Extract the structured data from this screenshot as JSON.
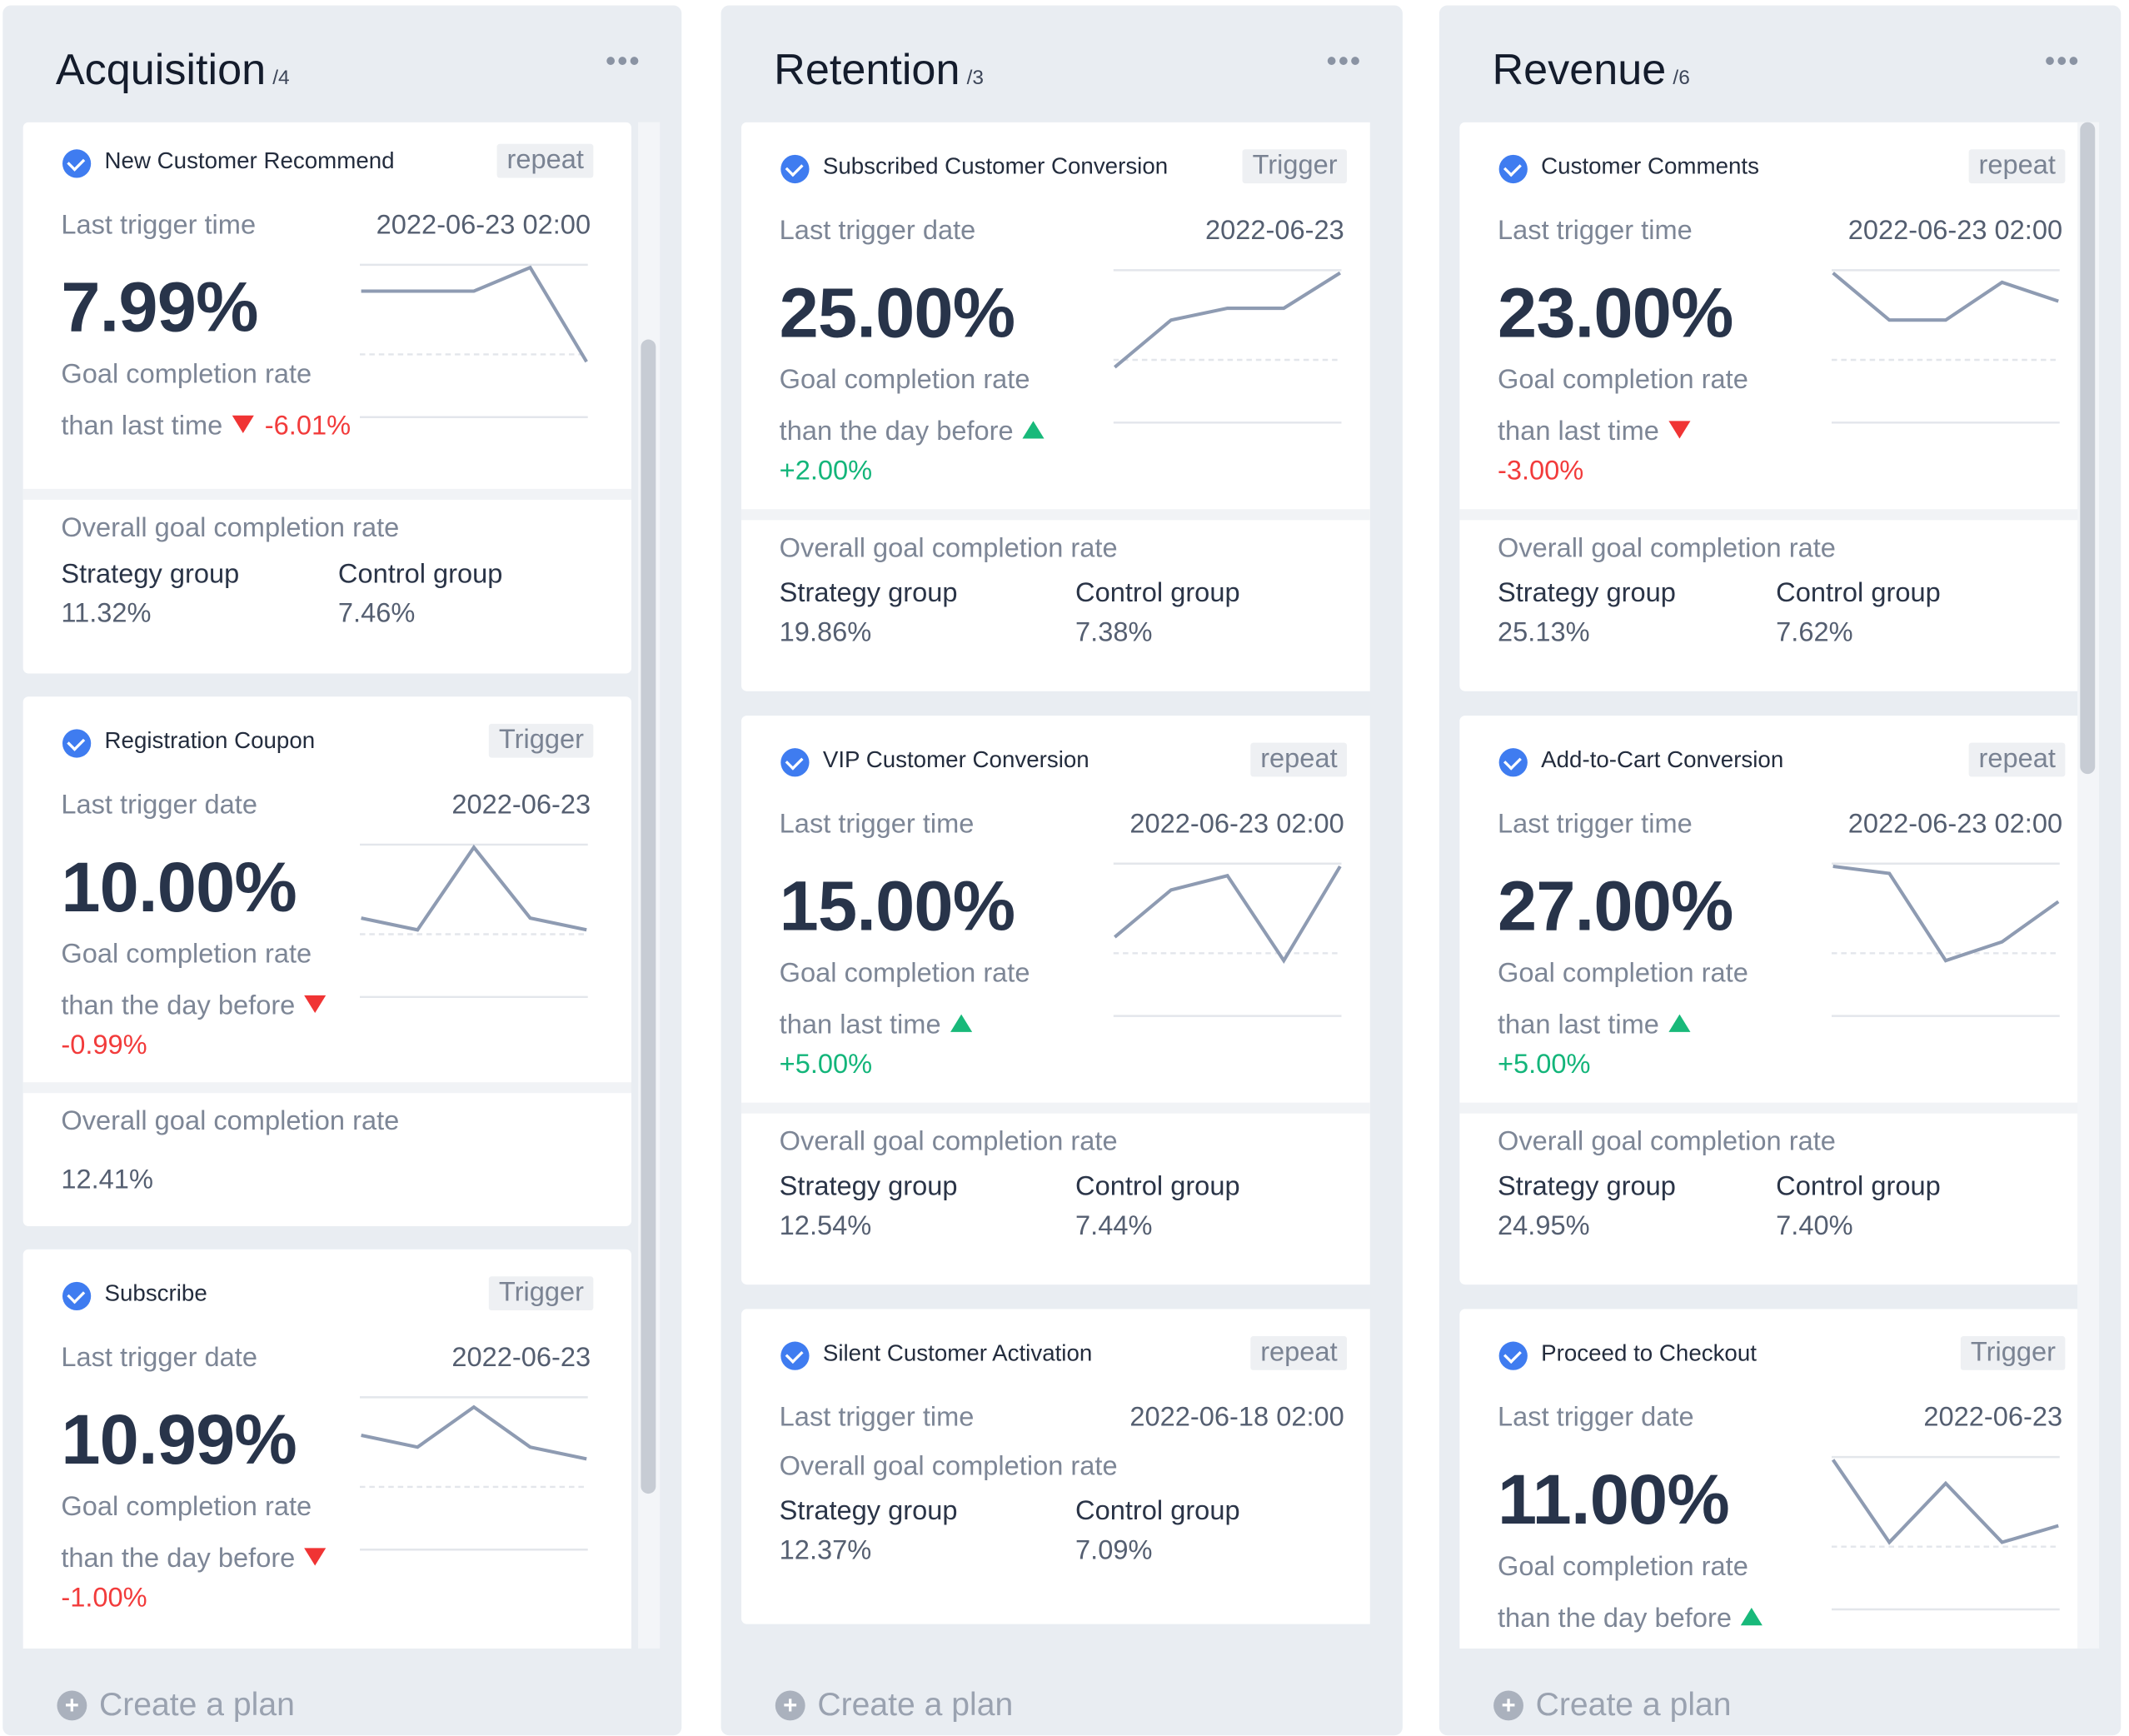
{
  "columns": [
    {
      "title": "Acquisition",
      "count": "/4",
      "more": "•••",
      "create_label": "Create a plan",
      "cards": [
        {
          "name": "New Customer Recommend",
          "badge": "repeat",
          "trigger_label": "Last trigger time",
          "trigger_value": "2022-06-23 02:00",
          "rate": "7.99%",
          "rate_label": "Goal completion rate",
          "compare_label": "than last time",
          "direction": "down",
          "change": "-6.01%",
          "overall_label": "Overall goal completion rate",
          "strategy_label": "Strategy group",
          "strategy_value": "11.32%",
          "control_label": "Control group",
          "control_value": "7.46%",
          "spark": [
            4,
            4,
            4,
            5,
            1
          ]
        },
        {
          "name": "Registration Coupon",
          "badge": "Trigger",
          "trigger_label": "Last trigger date",
          "trigger_value": "2022-06-23",
          "rate": "10.00%",
          "rate_label": "Goal completion rate",
          "compare_label": "than the day before",
          "direction": "down",
          "change": "-0.99%",
          "overall_label": "Overall goal completion rate",
          "overall_value": "12.41%",
          "spark": [
            2,
            1.5,
            5,
            2,
            1.5
          ]
        },
        {
          "name": "Subscribe",
          "badge": "Trigger",
          "trigger_label": "Last trigger date",
          "trigger_value": "2022-06-23",
          "rate": "10.99%",
          "rate_label": "Goal completion rate",
          "compare_label": "than the day before",
          "direction": "down",
          "change": "-1.00%",
          "spark": [
            3.5,
            3,
            4.7,
            3,
            2.5
          ]
        }
      ]
    },
    {
      "title": "Retention",
      "count": "/3",
      "more": "•••",
      "create_label": "Create a plan",
      "cards": [
        {
          "name": "Subscribed Customer Conversion",
          "badge": "Trigger",
          "trigger_label": "Last trigger date",
          "trigger_value": "2022-06-23",
          "rate": "25.00%",
          "rate_label": "Goal completion rate",
          "compare_label": "than the day before",
          "direction": "up",
          "change": "+2.00%",
          "overall_label": "Overall goal completion rate",
          "strategy_label": "Strategy group",
          "strategy_value": "19.86%",
          "control_label": "Control group",
          "control_value": "7.38%",
          "spark": [
            1,
            3,
            3.5,
            3.5,
            5
          ]
        },
        {
          "name": "VIP Customer Conversion",
          "badge": "repeat",
          "trigger_label": "Last trigger time",
          "trigger_value": "2022-06-23 02:00",
          "rate": "15.00%",
          "rate_label": "Goal completion rate",
          "compare_label": "than last time",
          "direction": "up",
          "change": "+5.00%",
          "overall_label": "Overall goal completion rate",
          "strategy_label": "Strategy group",
          "strategy_value": "12.54%",
          "control_label": "Control group",
          "control_value": "7.44%",
          "spark": [
            2,
            4,
            4.6,
            1,
            5
          ]
        },
        {
          "name": "Silent Customer Activation",
          "badge": "repeat",
          "trigger_label": "Last trigger time",
          "trigger_value": "2022-06-18 02:00",
          "overall_label": "Overall goal completion rate",
          "strategy_label": "Strategy group",
          "strategy_value": "12.37%",
          "control_label": "Control group",
          "control_value": "7.09%"
        }
      ]
    },
    {
      "title": "Revenue",
      "count": "/6",
      "more": "•••",
      "create_label": "Create a plan",
      "cards": [
        {
          "name": "Customer Comments",
          "badge": "repeat",
          "trigger_label": "Last trigger time",
          "trigger_value": "2022-06-23 02:00",
          "rate": "23.00%",
          "rate_label": "Goal completion rate",
          "compare_label": "than last time",
          "direction": "down",
          "change": "-3.00%",
          "overall_label": "Overall goal completion rate",
          "strategy_label": "Strategy group",
          "strategy_value": "25.13%",
          "control_label": "Control group",
          "control_value": "7.62%",
          "spark": [
            5,
            3,
            3,
            4.6,
            3.8
          ]
        },
        {
          "name": "Add-to-Cart Conversion",
          "badge": "repeat",
          "trigger_label": "Last trigger time",
          "trigger_value": "2022-06-23 02:00",
          "rate": "27.00%",
          "rate_label": "Goal completion rate",
          "compare_label": "than last time",
          "direction": "up",
          "change": "+5.00%",
          "overall_label": "Overall goal completion rate",
          "strategy_label": "Strategy group",
          "strategy_value": "24.95%",
          "control_label": "Control group",
          "control_value": "7.40%",
          "spark": [
            5,
            4.7,
            1,
            1.8,
            3.5
          ]
        },
        {
          "name": "Proceed to Checkout",
          "badge": "Trigger",
          "trigger_label": "Last trigger date",
          "trigger_value": "2022-06-23",
          "rate": "11.00%",
          "rate_label": "Goal completion rate",
          "compare_label": "than the day before",
          "direction": "up",
          "spark": [
            5,
            1.5,
            4,
            1.5,
            2.2
          ]
        }
      ]
    }
  ]
}
